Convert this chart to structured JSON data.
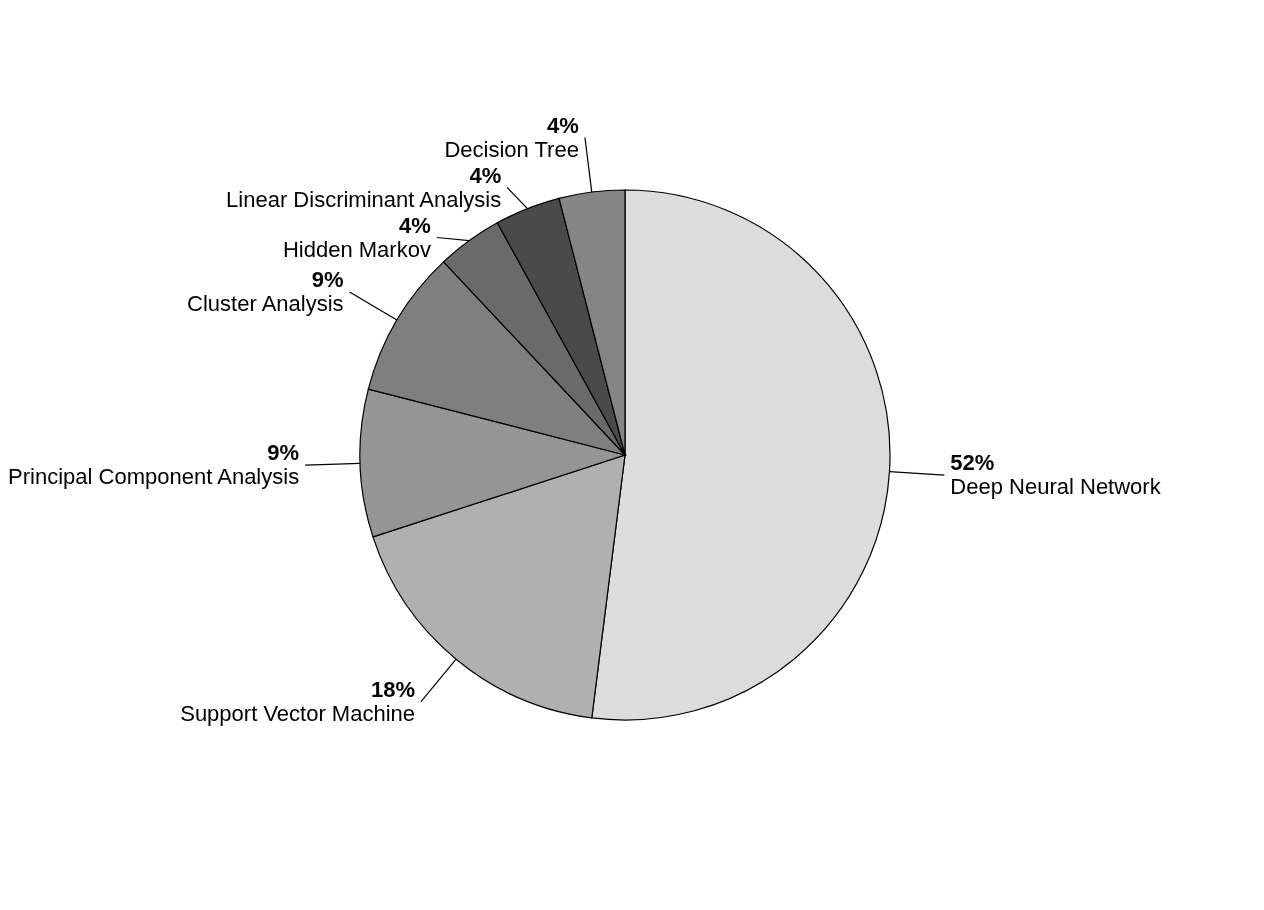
{
  "chart_data": {
    "type": "pie",
    "categories": [
      "Deep Neural Network",
      "Support Vector Machine",
      "Principal Component Analysis",
      "Cluster Analysis",
      "Hidden Markov",
      "Linear Discriminant Analysis",
      "Decision Tree"
    ],
    "values": [
      52,
      18,
      9,
      9,
      4,
      4,
      4
    ],
    "value_labels": [
      "52%",
      "18%",
      "9%",
      "9%",
      "4%",
      "4%",
      "4%"
    ],
    "colors": [
      "#dcdcdc",
      "#b0b0b0",
      "#959595",
      "#7f7f7f",
      "#6a6a6a",
      "#4a4a4a",
      "#858585"
    ],
    "legend": false
  }
}
